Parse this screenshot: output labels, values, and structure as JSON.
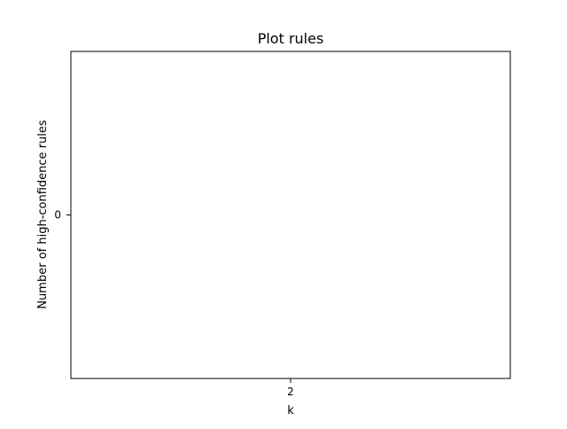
{
  "chart_data": {
    "type": "line",
    "title": "Plot rules",
    "xlabel": "k",
    "ylabel": "Number of high-confidence rules",
    "x_ticks": [
      "2"
    ],
    "y_ticks": [
      "0"
    ],
    "series": [],
    "grid": false,
    "legend": "none"
  },
  "colors": {
    "axes": "#000000",
    "background": "#ffffff"
  }
}
